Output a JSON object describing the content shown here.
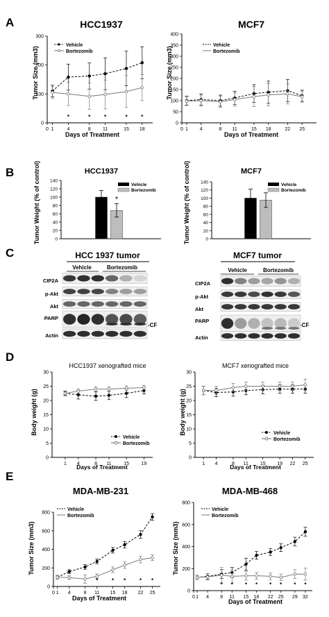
{
  "panel_labels": [
    "A",
    "B",
    "C",
    "D",
    "E"
  ],
  "panelA": {
    "left": {
      "title": "HCC1937",
      "ylabel": "Tumor Size (mm3)",
      "xlabel": "Days of Treatment",
      "legend": [
        "Vehicle",
        "Bortezomib"
      ]
    },
    "right": {
      "title": "MCF7",
      "ylabel": "Tumor Size (mm3)",
      "xlabel": "Days of Treatment",
      "legend": [
        "Vehicle",
        "Bortezomib"
      ]
    }
  },
  "panelB": {
    "left": {
      "title": "HCC1937",
      "ylabel": "Tumor Weight (% of control)",
      "legend": [
        "Vehicle",
        "Bortezomib"
      ]
    },
    "right": {
      "title": "MCF7",
      "ylabel": "Tumor Weight (% of control)",
      "legend": [
        "Vehicle",
        "Bortezomib"
      ]
    }
  },
  "panelC": {
    "left": {
      "title": "HCC 1937 tumor",
      "groups": [
        "Vehicle",
        "Bortezomib"
      ],
      "rows": [
        "CIP2A",
        "p-Akt",
        "Akt",
        "PARP",
        "Actin"
      ],
      "cf_label": "-CF"
    },
    "right": {
      "title": "MCF7 tumor",
      "groups": [
        "Vehicle",
        "Bortezomib"
      ],
      "rows": [
        "CIP2A",
        "p-Akt",
        "Akt",
        "PARP",
        "Actin"
      ],
      "cf_label": "-CF"
    }
  },
  "panelD": {
    "left": {
      "title": "HCC1937 xenografted mice",
      "ylabel": "Body weight (g)",
      "xlabel": "Days of Treatment",
      "legend": [
        "Vehicle",
        "Bortezomib"
      ]
    },
    "right": {
      "title": "MCF7 xenografted mice",
      "ylabel": "Body weight (g)",
      "xlabel": "Days of Treatment",
      "legend": [
        "Vehicle",
        "Bortezomib"
      ]
    }
  },
  "panelE": {
    "left": {
      "title": "MDA-MB-231",
      "ylabel": "Tumor Size (mm3)",
      "xlabel": "Days of Treatment",
      "legend": [
        "Vehicle",
        "Bortezomib"
      ]
    },
    "right": {
      "title": "MDA-MB-468",
      "ylabel": "Tumor Size (mm3)",
      "xlabel": "Days of Treatment",
      "legend": [
        "Vehicle",
        "Bortezomib"
      ]
    }
  },
  "chart_data": [
    {
      "id": "A-left",
      "type": "line",
      "x": [
        1,
        4,
        8,
        11,
        15,
        18
      ],
      "xticks": [
        0,
        1,
        4,
        8,
        11,
        15,
        18
      ],
      "ylim": [
        0,
        300
      ],
      "yticks": [
        0,
        100,
        200,
        300
      ],
      "series": [
        {
          "name": "Vehicle",
          "values": [
            110,
            158,
            162,
            170,
            188,
            208
          ],
          "err": [
            20,
            45,
            45,
            55,
            60,
            55
          ]
        },
        {
          "name": "Bortezomib",
          "values": [
            105,
            100,
            92,
            98,
            108,
            122
          ],
          "err": [
            20,
            40,
            45,
            50,
            55,
            45
          ]
        }
      ],
      "significance": [
        "*",
        "*",
        "*",
        "*",
        "*"
      ]
    },
    {
      "id": "A-right",
      "type": "line",
      "x": [
        1,
        4,
        8,
        11,
        15,
        18,
        22,
        25
      ],
      "xticks": [
        0,
        1,
        4,
        8,
        11,
        15,
        18,
        22,
        25
      ],
      "ylim": [
        0,
        400
      ],
      "yticks": [
        0,
        50,
        100,
        150,
        200,
        250,
        300,
        350,
        400
      ],
      "series": [
        {
          "name": "Vehicle",
          "values": [
            100,
            105,
            100,
            112,
            132,
            138,
            145,
            122
          ],
          "err": [
            20,
            25,
            25,
            30,
            40,
            50,
            50,
            25
          ]
        },
        {
          "name": "Bortezomib",
          "values": [
            98,
            100,
            95,
            105,
            118,
            126,
            130,
            118
          ],
          "err": [
            20,
            25,
            25,
            30,
            45,
            50,
            45,
            25
          ]
        }
      ]
    },
    {
      "id": "B-left",
      "type": "bar",
      "categories": [
        "Vehicle",
        "Bortezomib"
      ],
      "values": [
        100,
        68
      ],
      "err": [
        16,
        16
      ],
      "ylim": [
        0,
        140
      ],
      "yticks": [
        0,
        20,
        40,
        60,
        80,
        100,
        120,
        140
      ],
      "significance": [
        "",
        "*"
      ]
    },
    {
      "id": "B-right",
      "type": "bar",
      "categories": [
        "Vehicle",
        "Bortezomib"
      ],
      "values": [
        100,
        95
      ],
      "err": [
        22,
        18
      ],
      "ylim": [
        0,
        140
      ],
      "yticks": [
        0,
        20,
        40,
        60,
        80,
        100,
        120,
        140
      ]
    },
    {
      "id": "D-left",
      "type": "line",
      "x": [
        1,
        4,
        8,
        11,
        15,
        19
      ],
      "xticks": [
        1,
        4,
        8,
        11,
        15,
        19
      ],
      "ylim": [
        0,
        30
      ],
      "yticks": [
        0,
        5,
        10,
        15,
        20,
        25,
        30
      ],
      "series": [
        {
          "name": "Vehicle",
          "values": [
            22.5,
            22,
            21.5,
            21.8,
            22.5,
            23.5
          ],
          "err": [
            0.8,
            1.5,
            1.5,
            1.5,
            1.5,
            1.2
          ]
        },
        {
          "name": "Bortezomib",
          "values": [
            22.5,
            23.3,
            24,
            24,
            24.3,
            24.5
          ],
          "err": [
            0.6,
            0.8,
            0.8,
            0.8,
            0.8,
            0.8
          ]
        }
      ]
    },
    {
      "id": "D-right",
      "type": "line",
      "x": [
        1,
        4,
        8,
        11,
        15,
        19,
        22,
        25
      ],
      "xticks": [
        1,
        4,
        8,
        11,
        15,
        19,
        22,
        25
      ],
      "ylim": [
        0,
        30
      ],
      "yticks": [
        0,
        5,
        10,
        15,
        20,
        25,
        30
      ],
      "series": [
        {
          "name": "Vehicle",
          "values": [
            23.5,
            22.8,
            23,
            23.5,
            23.8,
            24,
            24,
            24
          ],
          "err": [
            1.5,
            1.5,
            1.5,
            1.5,
            1.5,
            1.5,
            1.5,
            1.5
          ]
        },
        {
          "name": "Bortezomib",
          "values": [
            23.5,
            23.5,
            24.5,
            25,
            25,
            25,
            25,
            25.5
          ],
          "err": [
            1.5,
            1.5,
            1.5,
            1.5,
            1.5,
            1.5,
            1.5,
            2
          ]
        }
      ]
    },
    {
      "id": "E-left",
      "type": "line",
      "x": [
        1,
        4,
        8,
        11,
        15,
        18,
        22,
        25
      ],
      "xticks": [
        0,
        1,
        4,
        8,
        11,
        15,
        18,
        22,
        25
      ],
      "ylim": [
        0,
        800
      ],
      "yticks": [
        0,
        200,
        400,
        600,
        800
      ],
      "series": [
        {
          "name": "Vehicle",
          "values": [
            100,
            160,
            210,
            270,
            390,
            450,
            560,
            750
          ],
          "err": [
            20,
            20,
            25,
            25,
            30,
            35,
            40,
            35
          ]
        },
        {
          "name": "Bortezomib",
          "values": [
            100,
            95,
            80,
            110,
            180,
            230,
            290,
            310
          ],
          "err": [
            20,
            20,
            45,
            25,
            30,
            35,
            35,
            30
          ]
        }
      ],
      "significance": [
        "*",
        "*",
        "*",
        "*",
        "*"
      ]
    },
    {
      "id": "E-right",
      "type": "line",
      "x": [
        1,
        4,
        8,
        11,
        15,
        18,
        22,
        25,
        29,
        32
      ],
      "xticks": [
        0,
        1,
        4,
        8,
        11,
        15,
        18,
        22,
        25,
        29,
        32
      ],
      "ylim": [
        0,
        800
      ],
      "yticks": [
        0,
        200,
        400,
        600,
        800
      ],
      "series": [
        {
          "name": "Vehicle",
          "values": [
            120,
            130,
            150,
            165,
            240,
            320,
            350,
            390,
            445,
            535
          ],
          "err": [
            20,
            25,
            40,
            45,
            55,
            35,
            30,
            35,
            40,
            40
          ]
        },
        {
          "name": "Bortezomib",
          "values": [
            120,
            125,
            140,
            130,
            135,
            135,
            130,
            120,
            150,
            150
          ],
          "err": [
            20,
            30,
            70,
            60,
            40,
            30,
            30,
            30,
            40,
            55
          ]
        }
      ],
      "significance": [
        "*",
        "*",
        "*",
        "*",
        "*",
        "*",
        "*",
        "*"
      ]
    }
  ]
}
